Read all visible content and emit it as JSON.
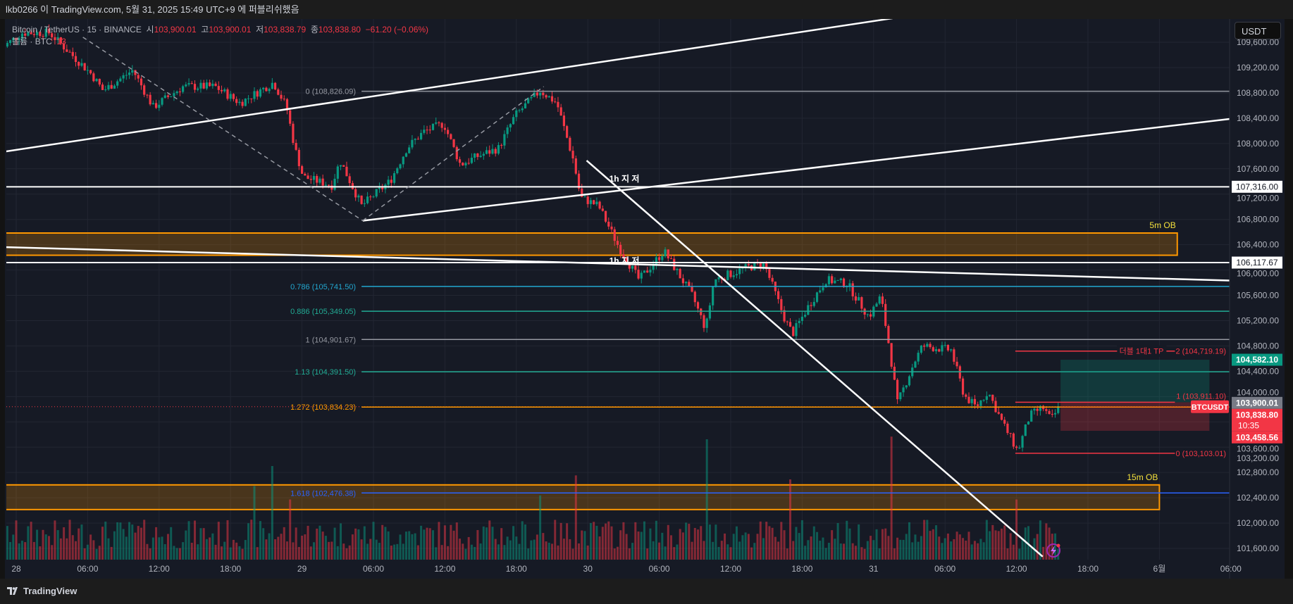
{
  "header": {
    "published": "lkb0266 이 TradingView.com, 5월 31, 2025 15:49 UTC+9 에 퍼블리쉬했음"
  },
  "legend": {
    "symbol": "Bitcoin / TetherUS · 15 · BINANCE",
    "o_label": "시",
    "o": "103,900.01",
    "h_label": "고",
    "h": "103,900.01",
    "l_label": "저",
    "l": "103,838.79",
    "c_label": "종",
    "c": "103,838.80",
    "change": "−61.20 (−0.06%)",
    "volume_label": "볼륨 · BTC",
    "volume_value": "13"
  },
  "currency_button": "USDT",
  "footer": {
    "brand": "TradingView"
  },
  "colors": {
    "bg": "#161a25",
    "up": "#089981",
    "down": "#f23645",
    "grid": "#222632",
    "text": "#b2b5be",
    "ob": "#ff9800",
    "white": "#ffffff"
  },
  "chart_data": {
    "type": "candlestick",
    "symbol": "BTCUSDT",
    "interval_minutes": 15,
    "y_ticks": [
      "109,600.00",
      "109,200.00",
      "108,800.00",
      "108,400.00",
      "108,000.00",
      "107,600.00",
      "107,200.00",
      "106,800.00",
      "106,400.00",
      "106,000.00",
      "105,600.00",
      "105,200.00",
      "104,800.00",
      "104,400.00",
      "104,000.00",
      "103,600.00",
      "103,200.00",
      "102,800.00",
      "102,400.00",
      "102,000.00",
      "101,600.00"
    ],
    "y_tick_values": [
      109600,
      109200,
      108800,
      108400,
      108000,
      107600,
      107200,
      106800,
      106400,
      106000,
      105600,
      105200,
      104800,
      104400,
      104000,
      103600,
      103200,
      102800,
      102400,
      102000,
      101600
    ],
    "x_ticks": [
      {
        "h": 0,
        "label": "28"
      },
      {
        "h": 6,
        "label": "06:00"
      },
      {
        "h": 12,
        "label": "12:00"
      },
      {
        "h": 18,
        "label": "18:00"
      },
      {
        "h": 24,
        "label": "29"
      },
      {
        "h": 30,
        "label": "06:00"
      },
      {
        "h": 36,
        "label": "12:00"
      },
      {
        "h": 42,
        "label": "18:00"
      },
      {
        "h": 48,
        "label": "30"
      },
      {
        "h": 54,
        "label": "06:00"
      },
      {
        "h": 60,
        "label": "12:00"
      },
      {
        "h": 66,
        "label": "18:00"
      },
      {
        "h": 72,
        "label": "31"
      },
      {
        "h": 78,
        "label": "06:00"
      },
      {
        "h": 84,
        "label": "12:00"
      },
      {
        "h": 90,
        "label": "18:00"
      },
      {
        "h": 96,
        "label": "6월"
      },
      {
        "h": 102,
        "label": "06:00"
      }
    ],
    "close_path": [
      [
        -1.3,
        109500
      ],
      [
        0.5,
        109750
      ],
      [
        2.8,
        109750
      ],
      [
        6.3,
        109100
      ],
      [
        7.3,
        108835
      ],
      [
        9.8,
        109160
      ],
      [
        11.5,
        108575
      ],
      [
        14,
        108900
      ],
      [
        16.7,
        108900
      ],
      [
        18.8,
        108640
      ],
      [
        21.6,
        108966
      ],
      [
        22.7,
        108575
      ],
      [
        23.4,
        107925
      ],
      [
        24.1,
        107470
      ],
      [
        26.5,
        107340
      ],
      [
        27.2,
        107730
      ],
      [
        29,
        107015
      ],
      [
        31.4,
        107405
      ],
      [
        32.8,
        107925
      ],
      [
        34.2,
        108185
      ],
      [
        35.9,
        108315
      ],
      [
        37.3,
        107665
      ],
      [
        38.7,
        107795
      ],
      [
        40.5,
        107925
      ],
      [
        41.9,
        108445
      ],
      [
        44,
        108835
      ],
      [
        45.4,
        108640
      ],
      [
        46.8,
        107730
      ],
      [
        47.4,
        107145
      ],
      [
        48.9,
        107015
      ],
      [
        50.6,
        106365
      ],
      [
        52.3,
        105845
      ],
      [
        54.4,
        106300
      ],
      [
        56.8,
        105585
      ],
      [
        57.9,
        105065
      ],
      [
        58.6,
        105845
      ],
      [
        61.4,
        106040
      ],
      [
        62.8,
        106105
      ],
      [
        64.6,
        105195
      ],
      [
        65.2,
        104995
      ],
      [
        66.6,
        105450
      ],
      [
        68,
        105845
      ],
      [
        69.8,
        105780
      ],
      [
        71.6,
        105260
      ],
      [
        72.6,
        105585
      ],
      [
        73.3,
        104800
      ],
      [
        74,
        103890
      ],
      [
        75.4,
        104540
      ],
      [
        76.1,
        104800
      ],
      [
        78.5,
        104735
      ],
      [
        79.6,
        104020
      ],
      [
        80.6,
        103830
      ],
      [
        81.6,
        104085
      ],
      [
        82.7,
        103630
      ],
      [
        84.1,
        103135
      ],
      [
        85.1,
        103695
      ],
      [
        86.2,
        103830
      ],
      [
        86.9,
        103630
      ],
      [
        87.6,
        103839
      ]
    ],
    "volume_spikes": [
      [
        20,
        0.55
      ],
      [
        21.5,
        0.7
      ],
      [
        23,
        0.45
      ],
      [
        44,
        0.48
      ],
      [
        47,
        0.63
      ],
      [
        58,
        0.9
      ],
      [
        65,
        0.6
      ],
      [
        73.5,
        0.92
      ],
      [
        84,
        0.45
      ]
    ],
    "price_labels": [
      {
        "value": 107316.0,
        "text": "107,316.00",
        "kind": "white"
      },
      {
        "value": 106117.67,
        "text": "106,117.67",
        "kind": "white"
      },
      {
        "value": 104582.1,
        "text": "104,582.10",
        "kind": "green"
      },
      {
        "value": 103900.01,
        "text": "103,900.01",
        "kind": "gray"
      },
      {
        "value": 103838.8,
        "text": "103,838.80",
        "sub": "10:35",
        "kind": "red"
      },
      {
        "value": 103458.56,
        "text": "103,458.56",
        "kind": "red"
      }
    ],
    "current_symbol_tag": "BTCUSDT",
    "fib_main": {
      "start_h": 29,
      "levels": [
        {
          "label": "0 (108,826.09)",
          "value": 108826.09,
          "color": "#9598a1"
        },
        {
          "label": "0.786 (105,741.50)",
          "value": 105741.5,
          "color": "#22a7d0"
        },
        {
          "label": "0.886 (105,349.05)",
          "value": 105349.05,
          "color": "#22ab94"
        },
        {
          "label": "1 (104,901.67)",
          "value": 104901.67,
          "color": "#9598a1"
        },
        {
          "label": "1.13 (104,391.50)",
          "value": 104391.5,
          "color": "#22ab94"
        },
        {
          "label": "1.272 (103,834.23)",
          "value": 103834.23,
          "color": "#ff9800"
        },
        {
          "label": "1.618 (102,476.38)",
          "value": 102476.38,
          "color": "#2962ff"
        }
      ]
    },
    "fib_tp": {
      "start_h": 83.9,
      "end_h": 97.3,
      "note": "더블 1대1 TP",
      "levels": [
        {
          "label": "2 (104,719.19)",
          "value": 104719.19
        },
        {
          "label": "1 (103,911.10)",
          "value": 103911.1
        },
        {
          "label": "0 (103,103.01)",
          "value": 103103.01
        }
      ]
    },
    "position": {
      "start_h": 87.7,
      "end_h": 100.2,
      "entry": 103910,
      "target": 104582.1,
      "stop": 103458.56
    },
    "order_blocks": [
      {
        "label": "5m OB",
        "top": 106585,
        "bottom": 106234,
        "start_h": -0.9,
        "end_h": 97.5
      },
      {
        "label": "15m OB",
        "top": 102604,
        "bottom": 102214,
        "start_h": -0.9,
        "end_h": 96
      }
    ],
    "horizontal_lines": [
      107316.0,
      106117.67
    ],
    "trend_lines": [
      {
        "name": "upper-channel",
        "p1": [
          -1.4,
          107860
        ],
        "p2": [
          73.6,
          109980
        ],
        "dash": false
      },
      {
        "name": "lower-channel",
        "p1": [
          29.1,
          106780
        ],
        "p2": [
          102.7,
          108406
        ],
        "dash": false
      },
      {
        "name": "descending-trendline",
        "p1": [
          47.9,
          107730
        ],
        "p2": [
          86.2,
          101470
        ],
        "dash": false
      },
      {
        "name": "sloped-support",
        "p1": [
          -1.4,
          106364
        ],
        "p2": [
          102.7,
          105830
        ],
        "dash": false
      },
      {
        "name": "swing-dash-1",
        "p1": [
          5.6,
          109680
        ],
        "p2": [
          29.1,
          106780
        ],
        "dash": true
      },
      {
        "name": "swing-dash-2",
        "p1": [
          29.1,
          106780
        ],
        "p2": [
          44.3,
          108900
        ],
        "dash": true
      }
    ],
    "sr_labels": [
      {
        "text": "1h 지 저",
        "h": 49.8,
        "value": 107400
      },
      {
        "text": "1h 지 저",
        "h": 49.8,
        "value": 106100
      }
    ]
  }
}
